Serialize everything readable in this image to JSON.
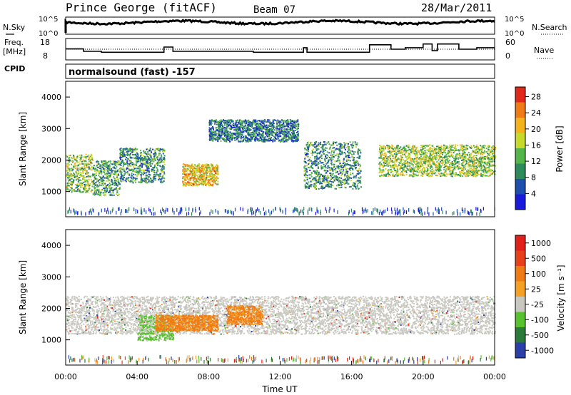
{
  "header": {
    "station": "Prince George (fitACF)",
    "beam": "Beam 07",
    "date": "28/Mar/2011"
  },
  "top_labels": {
    "nsky": "N.Sky",
    "nsearch": "N.Search",
    "freq": "Freq.",
    "freq_unit": "[MHz]",
    "nave": "Nave",
    "cpid": "CPID",
    "cpid_value": "normalsound (fast) -157"
  },
  "noise_panel": {
    "left_ticks": [
      "10^5",
      "10^0"
    ],
    "right_ticks": [
      "10^5",
      "10^0"
    ]
  },
  "freq_panel": {
    "left_ticks": [
      "18",
      "8"
    ],
    "right_ticks": [
      "60",
      "0"
    ],
    "freq_steps": [
      {
        "t0": 0.0,
        "t1": 1.0,
        "f": 13.2
      },
      {
        "t0": 1.0,
        "t1": 2.0,
        "f": 11.6
      },
      {
        "t0": 2.0,
        "t1": 5.5,
        "f": 11.0
      },
      {
        "t0": 5.5,
        "t1": 6.0,
        "f": 14.4
      },
      {
        "t0": 6.0,
        "t1": 10.5,
        "f": 11.6
      },
      {
        "t0": 10.5,
        "t1": 13.3,
        "f": 11.0
      },
      {
        "t0": 13.3,
        "t1": 13.5,
        "f": 14.0
      },
      {
        "t0": 13.5,
        "t1": 17.0,
        "f": 11.0
      },
      {
        "t0": 17.0,
        "t1": 17.4,
        "f": 15.9
      },
      {
        "t0": 17.4,
        "t1": 18.2,
        "f": 15.9
      },
      {
        "t0": 18.2,
        "t1": 19.0,
        "f": 13.0
      },
      {
        "t0": 19.0,
        "t1": 20.0,
        "f": 14.0
      },
      {
        "t0": 20.0,
        "t1": 20.5,
        "f": 16.4
      },
      {
        "t0": 20.5,
        "t1": 20.8,
        "f": 12.0
      },
      {
        "t0": 20.8,
        "t1": 22.0,
        "f": 16.4
      },
      {
        "t0": 22.0,
        "t1": 23.0,
        "f": 13.0
      },
      {
        "t0": 23.0,
        "t1": 24.0,
        "f": 14.0
      }
    ],
    "nave_level": 13.0
  },
  "chart_data": [
    {
      "type": "heatmap",
      "name": "Power",
      "ylabel": "Slant Range [km]",
      "ylim": [
        200,
        4500
      ],
      "yticks": [
        "1000",
        "2000",
        "3000",
        "4000"
      ],
      "xlim": [
        0,
        24
      ],
      "colorbar_label": "Power [dB]",
      "colorbar_ticks": [
        "28",
        "24",
        "20",
        "16",
        "12",
        "8",
        "4"
      ],
      "colorbar_range": [
        0,
        30
      ],
      "colors": [
        "#1a1adc",
        "#1f4fae",
        "#2d8a5a",
        "#54b54a",
        "#c7d92a",
        "#f4b31a",
        "#f07a14",
        "#e0281b"
      ],
      "scatter_bands": [
        {
          "t0": 0.0,
          "t1": 1.5,
          "r0": 1000,
          "r1": 2200,
          "p": 14
        },
        {
          "t0": 1.5,
          "t1": 3.0,
          "r0": 900,
          "r1": 2000,
          "p": 11
        },
        {
          "t0": 3.0,
          "t1": 5.5,
          "r0": 1300,
          "r1": 2400,
          "p": 10
        },
        {
          "t0": 6.5,
          "t1": 8.5,
          "r0": 1200,
          "r1": 1900,
          "p": 20
        },
        {
          "t0": 8.0,
          "t1": 13.0,
          "r0": 2600,
          "r1": 3300,
          "p": 8
        },
        {
          "t0": 13.3,
          "t1": 16.5,
          "r0": 1100,
          "r1": 2600,
          "p": 10
        },
        {
          "t0": 17.5,
          "t1": 24.0,
          "r0": 1500,
          "r1": 2500,
          "p": 15
        }
      ]
    },
    {
      "type": "heatmap",
      "name": "Velocity",
      "ylabel": "Slant Range [km]",
      "ylim": [
        200,
        4500
      ],
      "yticks": [
        "1000",
        "2000",
        "3000",
        "4000"
      ],
      "xlim": [
        0,
        24
      ],
      "xticks": [
        "00:00",
        "04:00",
        "08:00",
        "12:00",
        "16:00",
        "20:00",
        "00:00"
      ],
      "xlabel": "Time UT",
      "colorbar_label": "Velocity [m s⁻¹]",
      "colorbar_ticks": [
        "1000",
        "500",
        "100",
        "25",
        "-25",
        "-100",
        "-500",
        "-1000"
      ],
      "colors": [
        "#2a3fa8",
        "#2a7a3a",
        "#58c22e",
        "#c8c8c0",
        "#f4a022",
        "#f07a14",
        "#e8401a",
        "#e0201a"
      ],
      "scatter_bands": [
        {
          "t0": 0.0,
          "t1": 24.0,
          "r0": 1200,
          "r1": 2400,
          "v": "ground"
        },
        {
          "t0": 4.0,
          "t1": 6.0,
          "r0": 1000,
          "r1": 1800,
          "v": "green"
        },
        {
          "t0": 5.0,
          "t1": 8.5,
          "r0": 1300,
          "r1": 1800,
          "v": "orange"
        },
        {
          "t0": 9.0,
          "t1": 11.0,
          "r0": 1500,
          "r1": 2100,
          "v": "orange"
        }
      ]
    }
  ]
}
